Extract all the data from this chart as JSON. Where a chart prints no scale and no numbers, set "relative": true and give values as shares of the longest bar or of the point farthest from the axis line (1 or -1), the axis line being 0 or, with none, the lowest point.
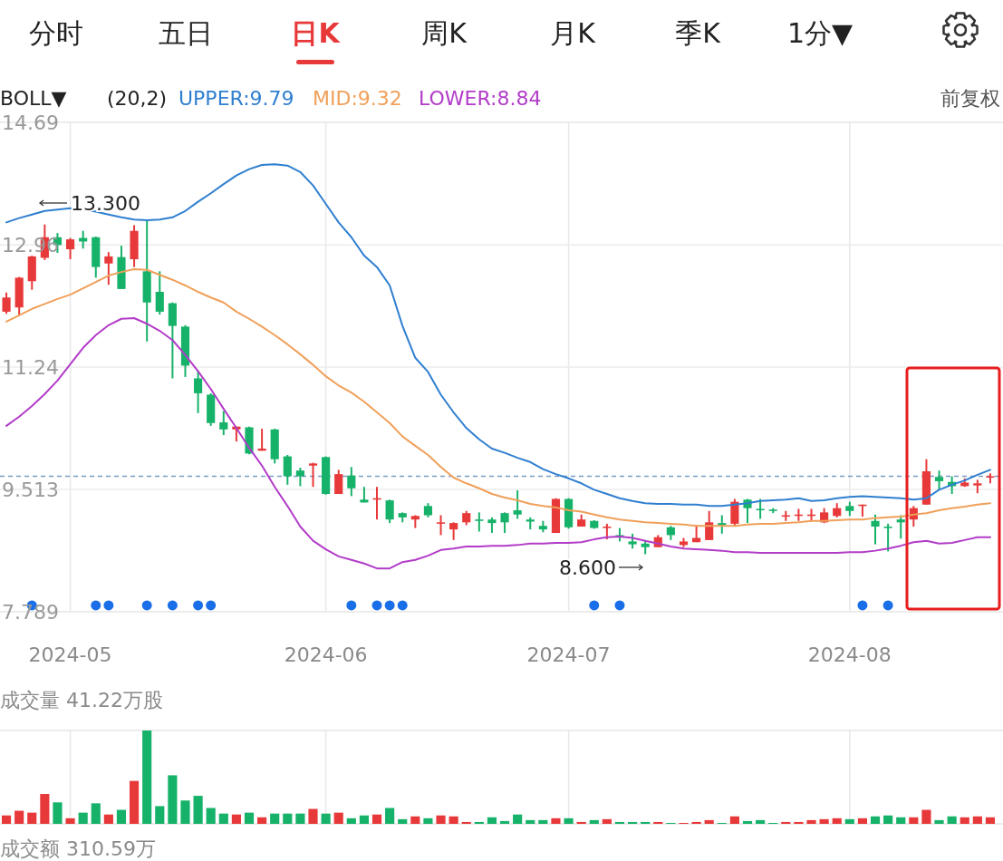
{
  "chart_data": [
    {
      "type": "candlestick",
      "legend": "top",
      "grid": true,
      "ylim": [
        7.789,
        14.69
      ],
      "yticks": [
        14.69,
        12.96,
        11.24,
        9.513,
        7.789
      ],
      "categories": [
        null,
        null,
        null,
        null,
        null,
        "2024-05",
        null,
        null,
        null,
        null,
        null,
        null,
        null,
        null,
        null,
        null,
        null,
        null,
        null,
        null,
        null,
        null,
        null,
        null,
        null,
        "2024-06",
        null,
        null,
        null,
        null,
        null,
        null,
        null,
        null,
        null,
        null,
        null,
        null,
        null,
        null,
        null,
        null,
        null,
        null,
        "2024-07",
        null,
        null,
        null,
        null,
        null,
        null,
        null,
        null,
        null,
        null,
        null,
        null,
        null,
        null,
        null,
        null,
        null,
        null,
        null,
        null,
        null,
        "2024-08",
        null,
        null,
        null,
        null,
        null,
        null,
        null,
        null,
        null,
        null,
        null
      ],
      "ohlc": [
        [
          12.02,
          12.29,
          11.99,
          12.22
        ],
        [
          12.08,
          12.51,
          11.96,
          12.5
        ],
        [
          12.45,
          12.81,
          12.33,
          12.8
        ],
        [
          12.78,
          13.25,
          12.75,
          13.07
        ],
        [
          13.07,
          13.13,
          12.85,
          12.96
        ],
        [
          12.9,
          13.06,
          12.76,
          13.04
        ],
        [
          13.06,
          13.16,
          12.91,
          13.01
        ],
        [
          13.07,
          13.08,
          12.5,
          12.65
        ],
        [
          12.7,
          12.86,
          12.4,
          12.8
        ],
        [
          12.79,
          12.95,
          12.34,
          12.34
        ],
        [
          12.76,
          13.24,
          12.65,
          13.16
        ],
        [
          12.59,
          13.3,
          11.6,
          12.15
        ],
        [
          12.3,
          12.59,
          11.98,
          12.02
        ],
        [
          12.14,
          12.15,
          11.08,
          11.82
        ],
        [
          11.81,
          11.83,
          11.1,
          11.26
        ],
        [
          11.08,
          11.19,
          10.59,
          10.87
        ],
        [
          10.85,
          10.87,
          10.41,
          10.45
        ],
        [
          10.46,
          10.62,
          10.28,
          10.36
        ],
        [
          10.36,
          10.4,
          10.19,
          10.4
        ],
        [
          10.39,
          10.4,
          10.01,
          10.02
        ],
        [
          10.06,
          10.37,
          10.06,
          10.09
        ],
        [
          10.36,
          10.37,
          9.88,
          9.94
        ],
        [
          9.98,
          10.0,
          9.58,
          9.7
        ],
        [
          9.78,
          9.82,
          9.56,
          9.7
        ],
        [
          9.85,
          9.89,
          9.55,
          9.88
        ],
        [
          9.97,
          9.98,
          9.44,
          9.45
        ],
        [
          9.45,
          9.79,
          9.45,
          9.73
        ],
        [
          9.71,
          9.83,
          9.42,
          9.53
        ],
        [
          9.37,
          9.55,
          9.33,
          9.33
        ],
        [
          9.37,
          9.55,
          9.09,
          9.39
        ],
        [
          9.36,
          9.37,
          9.04,
          9.09
        ],
        [
          9.18,
          9.19,
          9.05,
          9.12
        ],
        [
          9.09,
          9.15,
          8.97,
          9.14
        ],
        [
          9.28,
          9.32,
          9.12,
          9.15
        ],
        [
          9.03,
          9.15,
          8.87,
          9.05
        ],
        [
          8.95,
          9.05,
          8.8,
          9.04
        ],
        [
          9.05,
          9.21,
          9.01,
          9.18
        ],
        [
          9.09,
          9.19,
          8.92,
          9.07
        ],
        [
          9.09,
          9.12,
          8.9,
          9.04
        ],
        [
          9.18,
          9.19,
          8.9,
          9.05
        ],
        [
          9.22,
          9.5,
          9.1,
          9.16
        ],
        [
          9.09,
          9.12,
          8.95,
          9.06
        ],
        [
          9.0,
          9.07,
          8.91,
          8.95
        ],
        [
          8.9,
          9.39,
          8.9,
          9.38
        ],
        [
          9.38,
          9.39,
          8.96,
          8.98
        ],
        [
          8.99,
          9.16,
          8.99,
          9.09
        ],
        [
          9.07,
          9.08,
          8.96,
          8.97
        ],
        [
          8.97,
          9.03,
          8.81,
          8.99
        ],
        [
          8.87,
          8.97,
          8.78,
          8.84
        ],
        [
          8.78,
          8.89,
          8.68,
          8.74
        ],
        [
          8.75,
          8.8,
          8.6,
          8.7
        ],
        [
          8.7,
          8.87,
          8.7,
          8.84
        ],
        [
          8.98,
          9.0,
          8.8,
          8.87
        ],
        [
          8.73,
          8.83,
          8.7,
          8.78
        ],
        [
          8.77,
          9.01,
          8.77,
          8.83
        ],
        [
          8.8,
          9.21,
          8.8,
          9.05
        ],
        [
          9.04,
          9.15,
          8.89,
          9.01
        ],
        [
          9.03,
          9.38,
          8.99,
          9.34
        ],
        [
          9.37,
          9.38,
          9.04,
          9.25
        ],
        [
          9.24,
          9.38,
          9.1,
          9.22
        ],
        [
          9.23,
          9.25,
          9.18,
          9.21
        ],
        [
          9.13,
          9.21,
          9.07,
          9.15
        ],
        [
          9.14,
          9.24,
          9.07,
          9.16
        ],
        [
          9.14,
          9.24,
          9.06,
          9.16
        ],
        [
          9.05,
          9.25,
          9.04,
          9.19
        ],
        [
          9.14,
          9.32,
          9.12,
          9.25
        ],
        [
          9.28,
          9.34,
          9.14,
          9.21
        ],
        [
          9.28,
          9.3,
          9.13,
          9.3
        ],
        [
          9.07,
          9.16,
          8.74,
          8.99
        ],
        [
          8.99,
          9.03,
          8.64,
          8.97
        ],
        [
          9.09,
          9.15,
          8.82,
          9.05
        ],
        [
          9.09,
          9.28,
          8.99,
          9.25
        ],
        [
          9.3,
          9.94,
          9.3,
          9.77
        ],
        [
          9.69,
          9.78,
          9.51,
          9.63
        ],
        [
          9.62,
          9.7,
          9.45,
          9.56
        ],
        [
          9.56,
          9.67,
          9.55,
          9.61
        ],
        [
          9.57,
          9.65,
          9.46,
          9.6
        ],
        [
          9.68,
          9.74,
          9.6,
          9.7
        ]
      ],
      "colors": [
        "#e8393a",
        "#e8393a",
        "#e8393a",
        "#e8393a",
        "#17b26a",
        "#e8393a",
        "#17b26a",
        "#17b26a",
        "#e8393a",
        "#17b26a",
        "#e8393a",
        "#17b26a",
        "#17b26a",
        "#17b26a",
        "#17b26a",
        "#17b26a",
        "#17b26a",
        "#17b26a",
        "#e8393a",
        "#17b26a",
        "#e8393a",
        "#17b26a",
        "#17b26a",
        "#17b26a",
        "#e8393a",
        "#17b26a",
        "#e8393a",
        "#17b26a",
        "#17b26a",
        "#e8393a",
        "#17b26a",
        "#17b26a",
        "#e8393a",
        "#17b26a",
        "#e8393a",
        "#e8393a",
        "#e8393a",
        "#17b26a",
        "#17b26a",
        "#17b26a",
        "#17b26a",
        "#17b26a",
        "#17b26a",
        "#e8393a",
        "#17b26a",
        "#e8393a",
        "#17b26a",
        "#e8393a",
        "#17b26a",
        "#17b26a",
        "#17b26a",
        "#e8393a",
        "#17b26a",
        "#e8393a",
        "#e8393a",
        "#e8393a",
        "#17b26a",
        "#e8393a",
        "#17b26a",
        "#17b26a",
        "#17b26a",
        "#e8393a",
        "#e8393a",
        "#e8393a",
        "#e8393a",
        "#e8393a",
        "#17b26a",
        "#e8393a",
        "#17b26a",
        "#17b26a",
        "#17b26a",
        "#e8393a",
        "#e8393a",
        "#17b26a",
        "#17b26a",
        "#e8393a",
        "#e8393a",
        "#e8393a"
      ],
      "series": [
        {
          "type": "line",
          "name": "UPPER:9.79",
          "color": "#2f7fd0",
          "values": [
            13.28,
            13.34,
            13.39,
            13.44,
            13.46,
            13.48,
            13.46,
            13.43,
            13.39,
            13.35,
            13.32,
            13.31,
            13.32,
            13.35,
            13.44,
            13.57,
            13.69,
            13.82,
            13.94,
            14.03,
            14.09,
            14.1,
            14.08,
            13.99,
            13.8,
            13.54,
            13.28,
            13.07,
            12.81,
            12.65,
            12.39,
            11.82,
            11.37,
            11.17,
            10.85,
            10.6,
            10.38,
            10.22,
            10.09,
            10.03,
            9.96,
            9.9,
            9.8,
            9.73,
            9.67,
            9.6,
            9.51,
            9.45,
            9.39,
            9.35,
            9.32,
            9.31,
            9.31,
            9.3,
            9.3,
            9.28,
            9.28,
            9.3,
            9.32,
            9.35,
            9.36,
            9.37,
            9.39,
            9.35,
            9.36,
            9.39,
            9.41,
            9.42,
            9.41,
            9.4,
            9.39,
            9.37,
            9.39,
            9.51,
            9.58,
            9.64,
            9.72,
            9.79
          ]
        },
        {
          "type": "line",
          "name": "MID:9.32",
          "color": "#f0a05a",
          "values": [
            11.88,
            11.97,
            12.06,
            12.13,
            12.2,
            12.26,
            12.35,
            12.44,
            12.53,
            12.58,
            12.62,
            12.61,
            12.54,
            12.47,
            12.39,
            12.3,
            12.22,
            12.15,
            12.02,
            11.92,
            11.81,
            11.69,
            11.56,
            11.42,
            11.27,
            11.11,
            10.98,
            10.88,
            10.75,
            10.6,
            10.45,
            10.26,
            10.13,
            10.0,
            9.83,
            9.68,
            9.6,
            9.53,
            9.45,
            9.4,
            9.36,
            9.31,
            9.28,
            9.26,
            9.22,
            9.2,
            9.16,
            9.12,
            9.09,
            9.07,
            9.05,
            9.04,
            9.03,
            9.02,
            9.0,
            9.0,
            9.0,
            9.0,
            9.02,
            9.03,
            9.03,
            9.04,
            9.05,
            9.07,
            9.07,
            9.08,
            9.09,
            9.09,
            9.11,
            9.12,
            9.13,
            9.16,
            9.18,
            9.22,
            9.25,
            9.27,
            9.3,
            9.32
          ]
        },
        {
          "type": "line",
          "name": "LOWER:8.84",
          "color": "#b23cc8",
          "values": [
            10.41,
            10.54,
            10.69,
            10.86,
            11.05,
            11.28,
            11.51,
            11.69,
            11.83,
            11.92,
            11.93,
            11.85,
            11.75,
            11.62,
            11.41,
            11.18,
            10.93,
            10.65,
            10.38,
            10.1,
            9.85,
            9.55,
            9.28,
            8.99,
            8.79,
            8.67,
            8.57,
            8.52,
            8.47,
            8.4,
            8.4,
            8.49,
            8.52,
            8.58,
            8.66,
            8.68,
            8.71,
            8.71,
            8.72,
            8.72,
            8.73,
            8.75,
            8.75,
            8.76,
            8.76,
            8.77,
            8.81,
            8.84,
            8.85,
            8.83,
            8.79,
            8.75,
            8.71,
            8.68,
            8.67,
            8.66,
            8.65,
            8.63,
            8.63,
            8.62,
            8.62,
            8.62,
            8.62,
            8.62,
            8.62,
            8.62,
            8.63,
            8.63,
            8.65,
            8.68,
            8.72,
            8.77,
            8.79,
            8.75,
            8.76,
            8.8,
            8.84,
            8.84
          ]
        },
        {
          "type": "scatter",
          "marker": "circle",
          "color": "#1a6fe8",
          "values": [
            null,
            null,
            7.88,
            null,
            null,
            null,
            null,
            7.88,
            7.88,
            null,
            null,
            7.88,
            null,
            7.88,
            null,
            7.88,
            7.88,
            null,
            null,
            null,
            null,
            null,
            null,
            null,
            null,
            null,
            null,
            7.88,
            null,
            7.88,
            7.88,
            7.88,
            null,
            null,
            null,
            null,
            null,
            null,
            null,
            null,
            null,
            null,
            null,
            null,
            null,
            null,
            7.88,
            null,
            7.88,
            null,
            null,
            null,
            null,
            null,
            null,
            null,
            null,
            null,
            null,
            null,
            null,
            null,
            null,
            null,
            null,
            null,
            null,
            7.88,
            null,
            7.88,
            null,
            null,
            null,
            null,
            null,
            null,
            null,
            null
          ]
        }
      ],
      "ref_lines": [
        {
          "axis": "y",
          "value": 9.7,
          "color": "#7a9cc0",
          "line_style": "dashed"
        }
      ],
      "annotations": [
        "分时",
        "五日",
        "日K",
        "周K",
        "月K",
        "季K",
        "1分▼",
        "BOLL▼",
        "(20,2)",
        "前复权",
        "13.300",
        "8.600"
      ]
    },
    {
      "type": "bar",
      "relative": true,
      "tick_labels": false,
      "grid": "x",
      "title": "成交量 41.22万股",
      "categories": [
        null,
        null,
        null,
        null,
        null,
        "2024-05",
        null,
        null,
        null,
        null,
        null,
        null,
        null,
        null,
        null,
        null,
        null,
        null,
        null,
        null,
        null,
        null,
        null,
        null,
        null,
        "2024-06",
        null,
        null,
        null,
        null,
        null,
        null,
        null,
        null,
        null,
        null,
        null,
        null,
        null,
        null,
        null,
        null,
        null,
        null,
        "2024-07",
        null,
        null,
        null,
        null,
        null,
        null,
        null,
        null,
        null,
        null,
        null,
        null,
        null,
        null,
        null,
        null,
        null,
        null,
        null,
        null,
        null,
        "2024-08",
        null,
        null,
        null,
        null,
        null,
        null,
        null,
        null,
        null,
        null,
        null
      ],
      "values": [
        0.09,
        0.14,
        0.12,
        0.32,
        0.23,
        0.06,
        0.12,
        0.22,
        0.1,
        0.15,
        0.46,
        1,
        0.19,
        0.52,
        0.25,
        0.3,
        0.17,
        0.11,
        0.1,
        0.12,
        0.07,
        0.11,
        0.11,
        0.11,
        0.16,
        0.11,
        0.12,
        0.06,
        0.09,
        0.1,
        0.17,
        0.05,
        0.08,
        0.06,
        0.09,
        0.08,
        0.02,
        0.02,
        0.07,
        0.03,
        0.1,
        0.04,
        0.04,
        0.06,
        0.06,
        0.02,
        0.04,
        0.05,
        0.02,
        0.02,
        0.02,
        0.02,
        0.01,
        0.01,
        0.02,
        0.04,
        0.01,
        0.08,
        0.03,
        0.04,
        0.01,
        0.02,
        0.02,
        0.04,
        0.05,
        0.06,
        0.05,
        0.06,
        0.08,
        0.09,
        0.07,
        0.07,
        0.15,
        0.04,
        0.08,
        0.07,
        0.08,
        0.07
      ],
      "colors": [
        "#e8393a",
        "#e8393a",
        "#e8393a",
        "#e8393a",
        "#17b26a",
        "#e8393a",
        "#17b26a",
        "#17b26a",
        "#e8393a",
        "#17b26a",
        "#e8393a",
        "#17b26a",
        "#17b26a",
        "#17b26a",
        "#17b26a",
        "#17b26a",
        "#17b26a",
        "#17b26a",
        "#e8393a",
        "#17b26a",
        "#e8393a",
        "#17b26a",
        "#17b26a",
        "#17b26a",
        "#e8393a",
        "#17b26a",
        "#e8393a",
        "#17b26a",
        "#17b26a",
        "#e8393a",
        "#17b26a",
        "#17b26a",
        "#e8393a",
        "#17b26a",
        "#e8393a",
        "#e8393a",
        "#e8393a",
        "#17b26a",
        "#17b26a",
        "#17b26a",
        "#17b26a",
        "#17b26a",
        "#17b26a",
        "#e8393a",
        "#17b26a",
        "#e8393a",
        "#17b26a",
        "#e8393a",
        "#17b26a",
        "#17b26a",
        "#17b26a",
        "#e8393a",
        "#17b26a",
        "#e8393a",
        "#e8393a",
        "#e8393a",
        "#17b26a",
        "#e8393a",
        "#17b26a",
        "#17b26a",
        "#17b26a",
        "#e8393a",
        "#e8393a",
        "#e8393a",
        "#e8393a",
        "#e8393a",
        "#17b26a",
        "#e8393a",
        "#17b26a",
        "#17b26a",
        "#17b26a",
        "#e8393a",
        "#e8393a",
        "#17b26a",
        "#17b26a",
        "#e8393a",
        "#e8393a",
        "#e8393a"
      ],
      "annotations": [
        "成交额 310.59万"
      ]
    }
  ]
}
